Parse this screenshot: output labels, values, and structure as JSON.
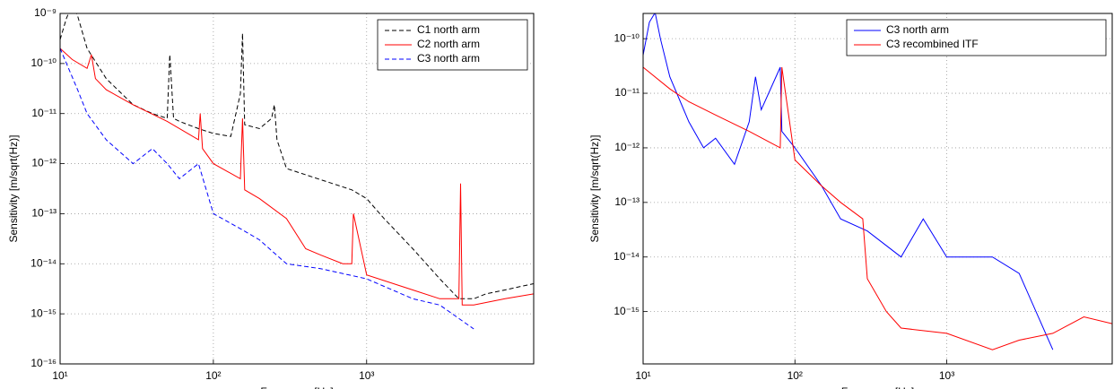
{
  "chart_data": [
    {
      "type": "line",
      "xlabel": "Frequency [Hz]",
      "ylabel": "Sensitivity [m/sqrt(Hz)]",
      "log_x": true,
      "log_y": true,
      "grid": true,
      "legend": "upper right",
      "xlim": [
        10,
        12300
      ],
      "ylim": [
        1e-16,
        1e-09
      ],
      "xticks": [
        {
          "value": 10,
          "label": "10¹"
        },
        {
          "value": 100,
          "label": "10²"
        },
        {
          "value": 1000,
          "label": "10³"
        }
      ],
      "yticks": [
        {
          "value": 1e-16,
          "label": "10⁻¹⁶"
        },
        {
          "value": 1e-15,
          "label": "10⁻¹⁵"
        },
        {
          "value": 1e-14,
          "label": "10⁻¹⁴"
        },
        {
          "value": 1e-13,
          "label": "10⁻¹³"
        },
        {
          "value": 1e-12,
          "label": "10⁻¹²"
        },
        {
          "value": 1e-11,
          "label": "10⁻¹¹"
        },
        {
          "value": 1e-10,
          "label": "10⁻¹⁰"
        },
        {
          "value": 1e-09,
          "label": "10⁻⁹"
        }
      ],
      "series": [
        {
          "name": "C1 north arm",
          "color": "#000000",
          "dashed": true,
          "x": [
            10,
            11,
            12,
            13,
            15,
            20,
            30,
            40,
            50,
            52,
            55,
            60,
            80,
            100,
            130,
            150,
            155,
            160,
            200,
            240,
            250,
            260,
            300,
            400,
            600,
            800,
            1000,
            1300,
            2000,
            3000,
            4000,
            5000,
            6000,
            8000,
            10000,
            12300
          ],
          "values": [
            3e-10,
            8e-10,
            1.5e-09,
            9e-10,
            2e-10,
            5e-11,
            1.5e-11,
            1e-11,
            8e-12,
            1.5e-10,
            8e-12,
            7e-12,
            5e-12,
            4e-12,
            3.5e-12,
            2.5e-11,
            4e-10,
            6e-12,
            5e-12,
            8e-12,
            1.5e-11,
            3e-12,
            8e-13,
            6e-13,
            4e-13,
            3e-13,
            2e-13,
            8e-14,
            2e-14,
            5e-15,
            2e-15,
            2e-15,
            2.5e-15,
            3e-15,
            3.5e-15,
            4e-15
          ]
        },
        {
          "name": "C2 north arm",
          "color": "#ff0000",
          "dashed": false,
          "x": [
            10,
            12,
            15,
            16,
            17,
            20,
            30,
            50,
            80,
            82,
            85,
            100,
            150,
            155,
            160,
            200,
            300,
            400,
            500,
            700,
            800,
            820,
            1000,
            2000,
            3000,
            4000,
            4100,
            4200,
            5000,
            8000,
            12300
          ],
          "values": [
            2e-10,
            1.2e-10,
            8e-11,
            1.5e-10,
            5e-11,
            3e-11,
            1.5e-11,
            7e-12,
            3e-12,
            1e-11,
            2e-12,
            1e-12,
            5e-13,
            8e-12,
            3e-13,
            2e-13,
            8e-14,
            2e-14,
            1.5e-14,
            1e-14,
            1e-14,
            1e-13,
            6e-15,
            3e-15,
            2e-15,
            2e-15,
            4e-13,
            1.5e-15,
            1.5e-15,
            2e-15,
            2.5e-15
          ]
        },
        {
          "name": "C3 north arm",
          "color": "#0000ff",
          "dashed": true,
          "x": [
            10,
            13,
            15,
            20,
            30,
            40,
            50,
            60,
            80,
            100,
            150,
            200,
            300,
            500,
            1000,
            2000,
            3000,
            5000
          ],
          "values": [
            2e-10,
            3e-11,
            1e-11,
            3e-12,
            1e-12,
            2e-12,
            1e-12,
            5e-13,
            1e-12,
            1e-13,
            5e-14,
            3e-14,
            1e-14,
            8e-15,
            5e-15,
            2e-15,
            1.5e-15,
            5e-16
          ]
        }
      ]
    },
    {
      "type": "line",
      "xlabel": "Frequency [Hz]",
      "ylabel": "Sensitivity [m/sqrt(Hz)]",
      "log_x": true,
      "log_y": true,
      "grid": true,
      "legend": "upper right",
      "xlim": [
        10,
        12300
      ],
      "ylim": [
        1.1e-16,
        2.9e-10
      ],
      "xticks": [
        {
          "value": 10,
          "label": "10¹"
        },
        {
          "value": 100,
          "label": "10²"
        },
        {
          "value": 1000,
          "label": "10³"
        }
      ],
      "yticks": [
        {
          "value": 1e-15,
          "label": "10⁻¹⁵"
        },
        {
          "value": 1e-14,
          "label": "10⁻¹⁴"
        },
        {
          "value": 1e-13,
          "label": "10⁻¹³"
        },
        {
          "value": 1e-12,
          "label": "10⁻¹²"
        },
        {
          "value": 1e-11,
          "label": "10⁻¹¹"
        },
        {
          "value": 1e-10,
          "label": "10⁻¹⁰"
        }
      ],
      "series": [
        {
          "name": "C3 north arm",
          "color": "#0000ff",
          "dashed": false,
          "x": [
            10,
            11,
            12,
            13,
            15,
            20,
            25,
            30,
            40,
            50,
            55,
            60,
            80,
            82,
            100,
            150,
            200,
            300,
            500,
            700,
            1000,
            2000,
            3000,
            5000
          ],
          "values": [
            5e-11,
            2e-10,
            3e-10,
            1e-10,
            2e-11,
            3e-12,
            1e-12,
            1.5e-12,
            5e-13,
            3e-12,
            2e-11,
            5e-12,
            3e-11,
            2e-12,
            1e-12,
            2e-13,
            5e-14,
            3e-14,
            1e-14,
            5e-14,
            1e-14,
            1e-14,
            5e-15,
            2e-16
          ]
        },
        {
          "name": "C3 recombined ITF",
          "color": "#ff0000",
          "dashed": false,
          "x": [
            10,
            15,
            20,
            30,
            50,
            80,
            82,
            100,
            150,
            200,
            280,
            300,
            400,
            500,
            1000,
            2000,
            3000,
            5000,
            8000,
            12300
          ],
          "values": [
            3e-11,
            1.2e-11,
            7e-12,
            4e-12,
            2e-12,
            1e-12,
            3e-11,
            6e-13,
            2e-13,
            1e-13,
            5e-14,
            4e-15,
            1e-15,
            5e-16,
            4e-16,
            2e-16,
            3e-16,
            4e-16,
            8e-16,
            6e-16
          ]
        }
      ]
    }
  ]
}
